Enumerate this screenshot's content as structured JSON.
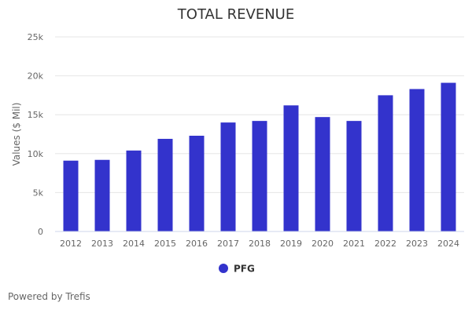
{
  "chart_data": {
    "type": "bar",
    "title": "TOTAL REVENUE",
    "xlabel": "",
    "ylabel": "Values ($ Mil)",
    "ylim": [
      0,
      25000
    ],
    "yticks": [
      {
        "value": 0,
        "label": "0"
      },
      {
        "value": 5000,
        "label": "5k"
      },
      {
        "value": 10000,
        "label": "10k"
      },
      {
        "value": 15000,
        "label": "15k"
      },
      {
        "value": 20000,
        "label": "20k"
      },
      {
        "value": 25000,
        "label": "25k"
      }
    ],
    "grid": true,
    "legend_position": "bottom-center",
    "categories": [
      "2012",
      "2013",
      "2014",
      "2015",
      "2016",
      "2017",
      "2018",
      "2019",
      "2020",
      "2021",
      "2022",
      "2023",
      "2024"
    ],
    "series": [
      {
        "name": "PFG",
        "color": "#3333cc",
        "values": [
          9100,
          9200,
          10400,
          11900,
          12300,
          14000,
          14200,
          16200,
          14700,
          14200,
          17500,
          18300,
          19100
        ]
      }
    ]
  },
  "footer": {
    "credit": "Powered by Trefis"
  }
}
